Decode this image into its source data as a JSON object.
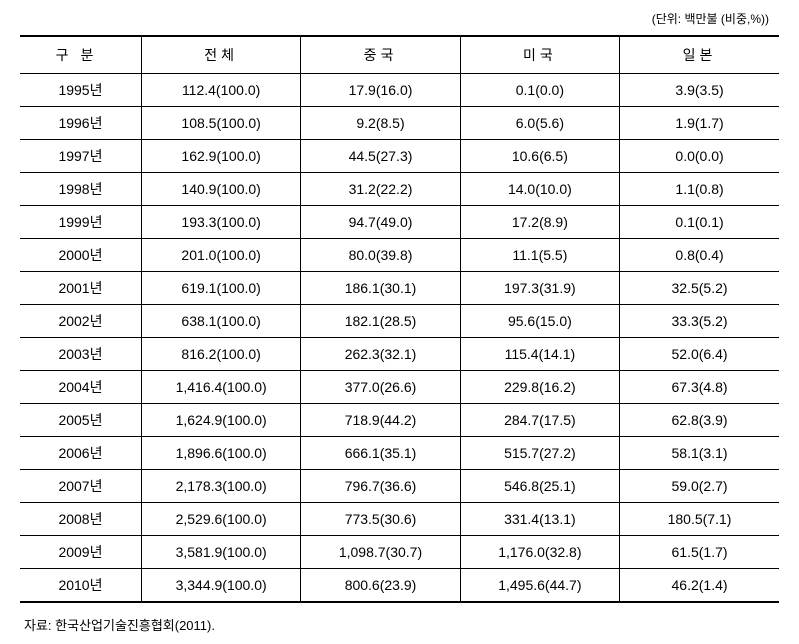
{
  "unit_label": "(단위: 백만불 (비중,%))",
  "columns": {
    "category": "구분",
    "total": "전체",
    "china": "중국",
    "usa": "미국",
    "japan": "일본"
  },
  "rows": [
    {
      "year": "1995년",
      "total": "112.4(100.0)",
      "china": "17.9(16.0)",
      "usa": "0.1(0.0)",
      "japan": "3.9(3.5)"
    },
    {
      "year": "1996년",
      "total": "108.5(100.0)",
      "china": "9.2(8.5)",
      "usa": "6.0(5.6)",
      "japan": "1.9(1.7)"
    },
    {
      "year": "1997년",
      "total": "162.9(100.0)",
      "china": "44.5(27.3)",
      "usa": "10.6(6.5)",
      "japan": "0.0(0.0)"
    },
    {
      "year": "1998년",
      "total": "140.9(100.0)",
      "china": "31.2(22.2)",
      "usa": "14.0(10.0)",
      "japan": "1.1(0.8)"
    },
    {
      "year": "1999년",
      "total": "193.3(100.0)",
      "china": "94.7(49.0)",
      "usa": "17.2(8.9)",
      "japan": "0.1(0.1)"
    },
    {
      "year": "2000년",
      "total": "201.0(100.0)",
      "china": "80.0(39.8)",
      "usa": "11.1(5.5)",
      "japan": "0.8(0.4)"
    },
    {
      "year": "2001년",
      "total": "619.1(100.0)",
      "china": "186.1(30.1)",
      "usa": "197.3(31.9)",
      "japan": "32.5(5.2)"
    },
    {
      "year": "2002년",
      "total": "638.1(100.0)",
      "china": "182.1(28.5)",
      "usa": "95.6(15.0)",
      "japan": "33.3(5.2)"
    },
    {
      "year": "2003년",
      "total": "816.2(100.0)",
      "china": "262.3(32.1)",
      "usa": "115.4(14.1)",
      "japan": "52.0(6.4)"
    },
    {
      "year": "2004년",
      "total": "1,416.4(100.0)",
      "china": "377.0(26.6)",
      "usa": "229.8(16.2)",
      "japan": "67.3(4.8)"
    },
    {
      "year": "2005년",
      "total": "1,624.9(100.0)",
      "china": "718.9(44.2)",
      "usa": "284.7(17.5)",
      "japan": "62.8(3.9)"
    },
    {
      "year": "2006년",
      "total": "1,896.6(100.0)",
      "china": "666.1(35.1)",
      "usa": "515.7(27.2)",
      "japan": "58.1(3.1)"
    },
    {
      "year": "2007년",
      "total": "2,178.3(100.0)",
      "china": "796.7(36.6)",
      "usa": "546.8(25.1)",
      "japan": "59.0(2.7)"
    },
    {
      "year": "2008년",
      "total": "2,529.6(100.0)",
      "china": "773.5(30.6)",
      "usa": "331.4(13.1)",
      "japan": "180.5(7.1)"
    },
    {
      "year": "2009년",
      "total": "3,581.9(100.0)",
      "china": "1,098.7(30.7)",
      "usa": "1,176.0(32.8)",
      "japan": "61.5(1.7)"
    },
    {
      "year": "2010년",
      "total": "3,344.9(100.0)",
      "china": "800.6(23.9)",
      "usa": "1,495.6(44.7)",
      "japan": "46.2(1.4)"
    }
  ],
  "source": "자료: 한국산업기술진흥협회(2011)."
}
